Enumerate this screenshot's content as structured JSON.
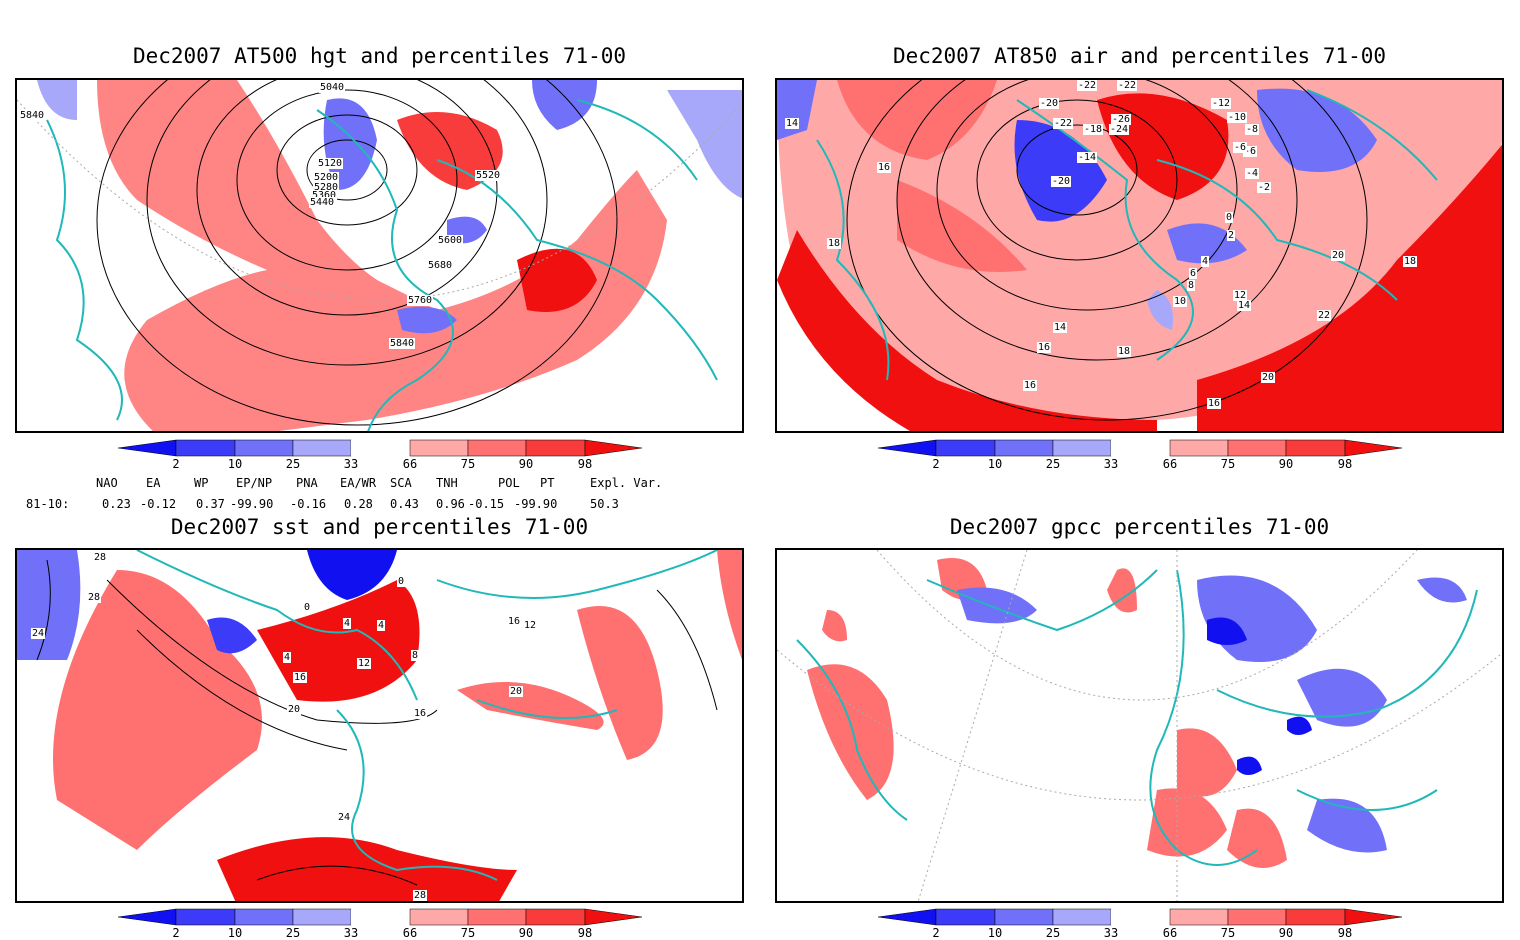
{
  "panels": [
    {
      "title": "Dec2007 AT500 hgt and percentiles 71-00",
      "contour_labels": [
        "5040",
        "5120",
        "5200",
        "5280",
        "5360",
        "5440",
        "5520",
        "5600",
        "5680",
        "5760",
        "5840",
        "5840"
      ]
    },
    {
      "title": "Dec2007 AT850 air and percentiles 71-00",
      "contour_labels": [
        "-22",
        "-22",
        "-20",
        "-18",
        "-24",
        "-26",
        "-22",
        "-14",
        "-12",
        "-10",
        "-8",
        "-6",
        "-4",
        "-2",
        "0",
        "2",
        "4",
        "6",
        "8",
        "10",
        "12",
        "14",
        "14",
        "16",
        "16",
        "16",
        "16",
        "18",
        "18",
        "18",
        "20",
        "20",
        "22",
        "-20",
        "-6",
        "14"
      ]
    },
    {
      "title": "Dec2007 sst and percentiles 71-00",
      "contour_labels": [
        "28",
        "28",
        "24",
        "0",
        "0",
        "4",
        "4",
        "4",
        "8",
        "12",
        "16",
        "16",
        "20",
        "20",
        "24",
        "28",
        "12",
        "16"
      ]
    },
    {
      "title": "Dec2007 gpcc percentiles 71-00",
      "contour_labels": []
    }
  ],
  "colorbar": {
    "ticks": [
      "2",
      "10",
      "25",
      "33",
      "66",
      "75",
      "90",
      "98"
    ],
    "colors": [
      "#1010f0",
      "#3c3cf8",
      "#7070f8",
      "#a8a8fa",
      "#ffa8a8",
      "#ff7070",
      "#f83c3c",
      "#f01010"
    ]
  },
  "teleconnections": {
    "header": [
      "NAO",
      "EA",
      "WP",
      "EP/NP",
      "PNA",
      "EA/WR",
      "SCA",
      "TNH",
      "POL",
      "PT",
      "Expl. Var."
    ],
    "row_label": "81-10:",
    "values": [
      "0.23",
      "-0.12",
      "0.37",
      "-99.90",
      "-0.16",
      "0.28",
      "0.43",
      "0.96",
      "-0.15",
      "-99.90",
      "50.3"
    ]
  },
  "colors": {
    "coastline": "#20b8b8",
    "warm": "#f02020",
    "cold": "#3030e0"
  }
}
